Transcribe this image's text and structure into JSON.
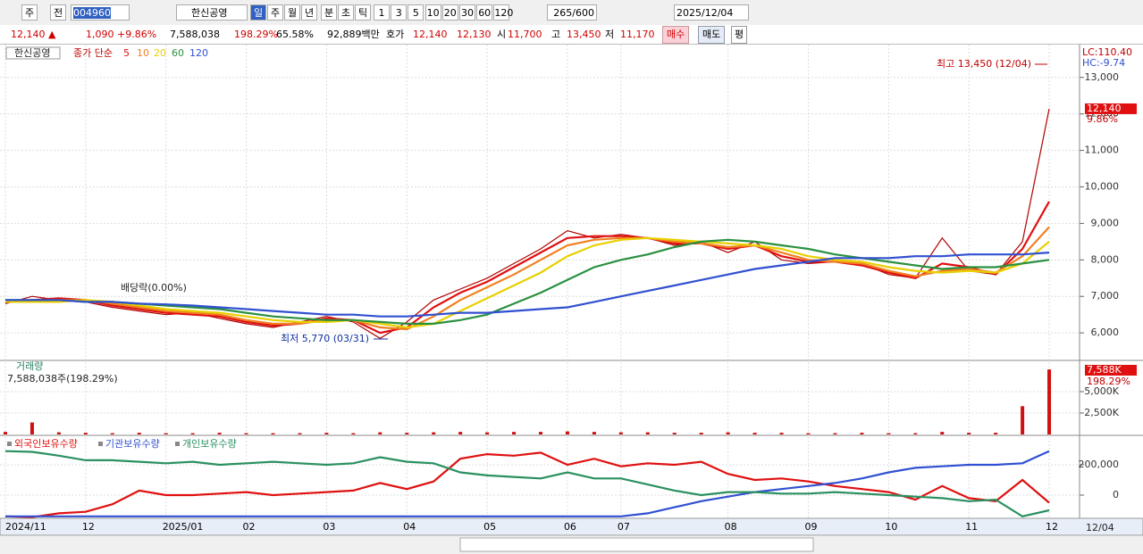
{
  "toolbar": {
    "market": "주",
    "prev": "전",
    "code": "004960",
    "name": "한신공영",
    "periods": [
      "일",
      "주",
      "월",
      "년",
      "분",
      "초",
      "틱"
    ],
    "intervals": [
      "1",
      "3",
      "5",
      "10",
      "20",
      "30",
      "60",
      "120"
    ],
    "count": "265/600",
    "date": "2025/12/04"
  },
  "quote": {
    "price": "12,140 ▲",
    "change": "1,090",
    "change_pct": "+9.86%",
    "volume": "7,588,038",
    "volume_ratio": "198.29%",
    "turnover": "65.58%",
    "amount": "92,889백만",
    "bid_ask_label": "호가",
    "ask": "12,140",
    "bid": "12,130",
    "open_label": "시",
    "open": "11,700",
    "high_label": "고",
    "high": "13,450",
    "low_label": "저",
    "low": "11,170",
    "buy": "매수",
    "sell": "매도",
    "avg": "평"
  },
  "chart_data": [
    {
      "type": "line",
      "legend_name": "한신공영",
      "ma_label": "종가 단순",
      "categories": [
        "2024/11",
        null,
        null,
        "12",
        null,
        null,
        "2025/01",
        null,
        null,
        "02",
        null,
        null,
        "03",
        null,
        null,
        "04",
        null,
        null,
        "05",
        null,
        null,
        "06",
        null,
        "07",
        null,
        null,
        null,
        "08",
        null,
        null,
        "09",
        null,
        null,
        "10",
        null,
        null,
        "11",
        null,
        null,
        "12"
      ],
      "series": [
        {
          "name": "종가",
          "color": "#b00000",
          "values": [
            6800,
            7000,
            6900,
            6850,
            6700,
            6600,
            6500,
            6550,
            6400,
            6250,
            6150,
            6300,
            6450,
            6300,
            5850,
            6300,
            6900,
            7200,
            7500,
            7900,
            8300,
            8800,
            8600,
            8700,
            8600,
            8400,
            8500,
            8200,
            8500,
            8000,
            7900,
            7950,
            7900,
            7600,
            7500,
            8600,
            7700,
            7600,
            8500,
            12140
          ]
        },
        {
          "name": "5",
          "color": "#e01010",
          "values": [
            6850,
            6900,
            6950,
            6900,
            6750,
            6650,
            6550,
            6500,
            6450,
            6300,
            6200,
            6250,
            6400,
            6350,
            6000,
            6150,
            6700,
            7100,
            7400,
            7800,
            8200,
            8600,
            8650,
            8650,
            8600,
            8450,
            8450,
            8300,
            8400,
            8100,
            7950,
            7950,
            7850,
            7650,
            7500,
            7900,
            7800,
            7600,
            8300,
            9600
          ]
        },
        {
          "name": "10",
          "color": "#f08020",
          "values": [
            6850,
            6850,
            6900,
            6900,
            6800,
            6700,
            6600,
            6550,
            6500,
            6350,
            6250,
            6250,
            6350,
            6350,
            6150,
            6100,
            6450,
            6900,
            7250,
            7600,
            8000,
            8400,
            8550,
            8600,
            8600,
            8500,
            8450,
            8350,
            8400,
            8200,
            8000,
            7950,
            7900,
            7700,
            7550,
            7700,
            7750,
            7650,
            8100,
            8900
          ]
        },
        {
          "name": "20",
          "color": "#e8d000",
          "values": [
            6850,
            6850,
            6850,
            6900,
            6850,
            6750,
            6650,
            6600,
            6550,
            6450,
            6350,
            6300,
            6300,
            6350,
            6250,
            6150,
            6250,
            6600,
            6950,
            7300,
            7650,
            8100,
            8400,
            8550,
            8600,
            8550,
            8500,
            8450,
            8400,
            8300,
            8100,
            8000,
            7950,
            7800,
            7700,
            7650,
            7700,
            7650,
            7900,
            8500
          ]
        },
        {
          "name": "60",
          "color": "#2a9040",
          "values": [
            6900,
            6900,
            6900,
            6850,
            6850,
            6800,
            6750,
            6700,
            6650,
            6550,
            6450,
            6400,
            6350,
            6350,
            6300,
            6250,
            6250,
            6350,
            6500,
            6800,
            7100,
            7450,
            7800,
            8000,
            8150,
            8350,
            8500,
            8550,
            8500,
            8400,
            8300,
            8150,
            8050,
            7950,
            7850,
            7750,
            7800,
            7800,
            7900,
            8000
          ]
        },
        {
          "name": "120",
          "color": "#3050d0",
          "values": [
            6900,
            6900,
            6900,
            6850,
            6850,
            6800,
            6780,
            6750,
            6700,
            6650,
            6600,
            6550,
            6500,
            6500,
            6450,
            6450,
            6500,
            6550,
            6550,
            6600,
            6650,
            6700,
            6850,
            7000,
            7150,
            7300,
            7450,
            7600,
            7750,
            7850,
            7950,
            8050,
            8050,
            8050,
            8100,
            8100,
            8150,
            8150,
            8150,
            8200
          ]
        }
      ],
      "ylim": [
        5270,
        13850
      ],
      "yticks": [
        {
          "value": 6000,
          "label": "6,000"
        },
        {
          "value": 7000,
          "label": "7,000"
        },
        {
          "value": 8000,
          "label": "8,000"
        },
        {
          "value": 9000,
          "label": "9,000"
        },
        {
          "value": 10000,
          "label": "10,000"
        },
        {
          "value": 11000,
          "label": "11,000"
        },
        {
          "value": 12000,
          "label": "12,000"
        },
        {
          "value": 13000,
          "label": "13,000"
        }
      ],
      "grid": true,
      "high_note": "최고 13,450 (12/04)",
      "low_note": "최저 5,770 (03/31)",
      "event_note": "배당락(0.00%)",
      "lc": "LC:110.40",
      "hc": "HC:-9.74",
      "last_price": {
        "value": 12140,
        "label": "12,140"
      },
      "last_change": "9.86%",
      "x_end_label": "12/04"
    },
    {
      "type": "bar",
      "title": "거래량",
      "subtitle": "7,588,038주(198.29%)",
      "color": "#d01010",
      "values": [
        300000,
        1400000,
        250000,
        200000,
        150000,
        200000,
        150000,
        150000,
        200000,
        150000,
        150000,
        150000,
        200000,
        150000,
        250000,
        200000,
        250000,
        300000,
        250000,
        300000,
        300000,
        350000,
        300000,
        250000,
        250000,
        200000,
        200000,
        250000,
        200000,
        200000,
        150000,
        150000,
        200000,
        150000,
        150000,
        300000,
        200000,
        200000,
        3300000,
        7588038
      ],
      "ylim": [
        0,
        8540000
      ],
      "yticks": [
        {
          "value": 2500000,
          "label": "2,500K"
        },
        {
          "value": 5000000,
          "label": "5,000K"
        }
      ],
      "grid": true,
      "last_label": {
        "value": 7588038,
        "label": "7,588K"
      },
      "last_ratio": "198.29%"
    },
    {
      "type": "line",
      "series": [
        {
          "name": "외국인보유수량",
          "color": "#e01010",
          "values": [
            -140000,
            -145000,
            -120000,
            -110000,
            -60000,
            30000,
            0,
            0,
            10000,
            20000,
            0,
            10000,
            20000,
            30000,
            80000,
            40000,
            90000,
            240000,
            270000,
            260000,
            280000,
            200000,
            240000,
            190000,
            210000,
            200000,
            220000,
            140000,
            100000,
            110000,
            90000,
            60000,
            40000,
            20000,
            -30000,
            60000,
            -20000,
            -40000,
            100000,
            -50000
          ]
        },
        {
          "name": "기관보유수량",
          "color": "#3050d0",
          "values": [
            -140000,
            -140000,
            -140000,
            -140000,
            -140000,
            -140000,
            -140000,
            -140000,
            -140000,
            -140000,
            -140000,
            -140000,
            -140000,
            -140000,
            -140000,
            -140000,
            -140000,
            -140000,
            -140000,
            -140000,
            -140000,
            -140000,
            -140000,
            -140000,
            -120000,
            -80000,
            -40000,
            -10000,
            20000,
            40000,
            60000,
            80000,
            110000,
            150000,
            180000,
            190000,
            200000,
            200000,
            210000,
            290000
          ]
        },
        {
          "name": "개인보유수량",
          "color": "#2a9060",
          "values": [
            290000,
            285000,
            260000,
            230000,
            230000,
            220000,
            210000,
            220000,
            200000,
            210000,
            220000,
            210000,
            200000,
            210000,
            250000,
            220000,
            210000,
            150000,
            130000,
            120000,
            110000,
            150000,
            110000,
            110000,
            70000,
            30000,
            0,
            20000,
            20000,
            10000,
            10000,
            20000,
            10000,
            0,
            -10000,
            -20000,
            -40000,
            -30000,
            -140000,
            -100000
          ]
        }
      ],
      "ylim": [
        -147000,
        382000
      ],
      "yticks": [
        {
          "value": 0,
          "label": "0"
        },
        {
          "value": 200000,
          "label": "200,000"
        }
      ],
      "grid": true
    }
  ]
}
